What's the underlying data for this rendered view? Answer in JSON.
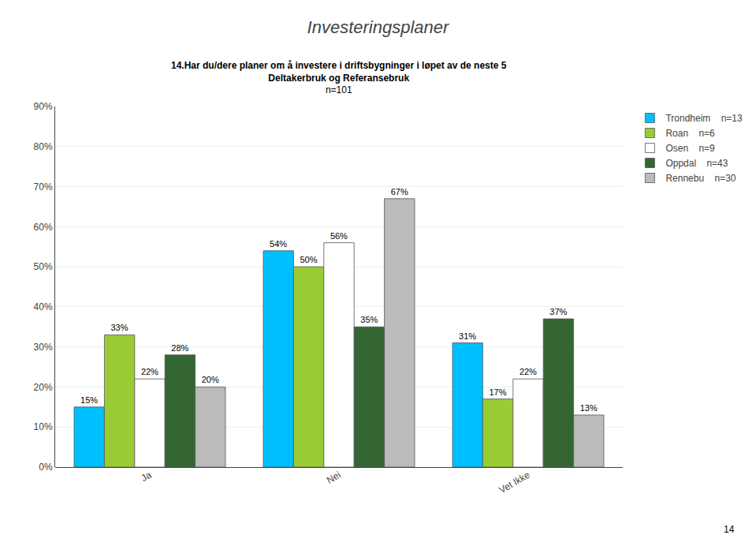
{
  "chart_data": {
    "type": "bar",
    "title": "Investeringsplaner",
    "subtitle": [
      "14.Har du/dere planer om å investere i driftsbygninger i løpet av de neste 5",
      "Deltakerbruk og Referansebruk",
      "n=101"
    ],
    "annotations": [
      "14"
    ],
    "categories": [
      "Ja",
      "Nei",
      "Vet Ikke"
    ],
    "series": [
      {
        "name": "Trondheim",
        "n": "n=13",
        "color": "#00BFFF",
        "values": [
          15,
          54,
          31
        ],
        "value_labels": [
          "15%",
          "54%",
          "31%"
        ]
      },
      {
        "name": "Roan",
        "n": "n=6",
        "color": "#99CC33",
        "values": [
          33,
          50,
          17
        ],
        "value_labels": [
          "33%",
          "50%",
          "17%"
        ]
      },
      {
        "name": "Osen",
        "n": "n=9",
        "color": "#FFFFFF",
        "values": [
          22,
          56,
          22
        ],
        "value_labels": [
          "22%",
          "56%",
          "22%"
        ]
      },
      {
        "name": "Oppdal",
        "n": "n=43",
        "color": "#336633",
        "values": [
          28,
          35,
          37
        ],
        "value_labels": [
          "28%",
          "35%",
          "37%"
        ]
      },
      {
        "name": "Rennebu",
        "n": "n=30",
        "color": "#BBBBBB",
        "values": [
          20,
          67,
          13
        ],
        "value_labels": [
          "20%",
          "67%",
          "13%"
        ]
      }
    ],
    "ylim": [
      0,
      90
    ],
    "yticks": [
      {
        "value": 0,
        "label": "0%"
      },
      {
        "value": 10,
        "label": "10%"
      },
      {
        "value": 20,
        "label": "20%"
      },
      {
        "value": 30,
        "label": "30%"
      },
      {
        "value": 40,
        "label": "40%"
      },
      {
        "value": 50,
        "label": "50%"
      },
      {
        "value": 60,
        "label": "60%"
      },
      {
        "value": 70,
        "label": "70%"
      },
      {
        "value": 80,
        "label": "80%"
      },
      {
        "value": 90,
        "label": "90%"
      }
    ],
    "grid": true,
    "data_labels": true,
    "legend": "right"
  }
}
